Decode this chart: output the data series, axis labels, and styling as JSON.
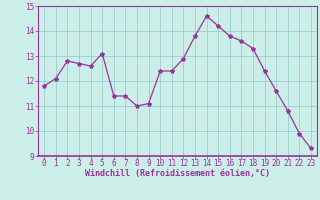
{
  "x": [
    0,
    1,
    2,
    3,
    4,
    5,
    6,
    7,
    8,
    9,
    10,
    11,
    12,
    13,
    14,
    15,
    16,
    17,
    18,
    19,
    20,
    21,
    22,
    23
  ],
  "y": [
    11.8,
    12.1,
    12.8,
    12.7,
    12.6,
    13.1,
    11.4,
    11.4,
    11.0,
    11.1,
    12.4,
    12.4,
    12.9,
    13.8,
    14.6,
    14.2,
    13.8,
    13.6,
    13.3,
    12.4,
    11.6,
    10.8,
    9.9,
    9.3
  ],
  "line_color": "#993399",
  "marker": "*",
  "marker_size": 3,
  "bg_color": "#cceee8",
  "grid_color": "#99cccc",
  "xlabel": "Windchill (Refroidissement éolien,°C)",
  "ylim": [
    9,
    15
  ],
  "xlim_min": -0.5,
  "xlim_max": 23.5,
  "yticks": [
    9,
    10,
    11,
    12,
    13,
    14,
    15
  ],
  "xticks": [
    0,
    1,
    2,
    3,
    4,
    5,
    6,
    7,
    8,
    9,
    10,
    11,
    12,
    13,
    14,
    15,
    16,
    17,
    18,
    19,
    20,
    21,
    22,
    23
  ],
  "xlabel_color": "#993399",
  "tick_color": "#993399",
  "axis_color": "#993399",
  "tick_fontsize": 5.5,
  "xlabel_fontsize": 6.0
}
